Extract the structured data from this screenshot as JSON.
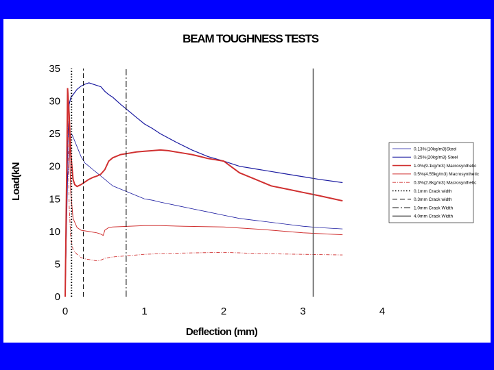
{
  "colors": {
    "background": "#0000ff",
    "panel": "#ffffff",
    "steel": "#1a1aa0",
    "synthetic": "#d03030",
    "crack": "#000000"
  },
  "chart_data": {
    "type": "line",
    "title": "BEAM TOUGHNESS TESTS",
    "xlabel": "Deflection (mm)",
    "ylabel": "Load(kN",
    "xlim": [
      0,
      4
    ],
    "ylim": [
      0,
      35
    ],
    "xticks": [
      "0",
      "1",
      "2",
      "3",
      "4"
    ],
    "yticks": [
      "0",
      "5",
      "10",
      "15",
      "20",
      "25",
      "30",
      "35"
    ],
    "grid": false,
    "legend_position": "right",
    "series": [
      {
        "name": "0.13%(10kg/m3)Steel",
        "color": "#1a1aa0",
        "width": 0.8,
        "dash": "",
        "x": [
          0,
          0.03,
          0.06,
          0.08,
          0.1,
          0.15,
          0.2,
          0.25,
          0.3,
          0.35,
          0.4,
          0.45,
          0.5,
          0.55,
          0.6,
          0.7,
          0.8,
          0.9,
          1.0,
          1.1,
          1.2,
          1.4,
          1.6,
          1.8,
          2.0,
          2.2,
          2.4,
          2.6,
          2.8,
          3.0,
          3.2,
          3.5
        ],
        "y": [
          0,
          18,
          24.5,
          25,
          24.5,
          23,
          21.5,
          20.5,
          20,
          19.5,
          19,
          18.5,
          18,
          17.5,
          17,
          16.5,
          16,
          15.5,
          15,
          14.8,
          14.5,
          14,
          13.5,
          13,
          12.5,
          12,
          11.7,
          11.4,
          11.1,
          10.8,
          10.6,
          10.4
        ]
      },
      {
        "name": "0.25%(20kg/m3) Steel",
        "color": "#1a1aa0",
        "width": 1.2,
        "dash": "",
        "x": [
          0,
          0.03,
          0.05,
          0.07,
          0.1,
          0.15,
          0.2,
          0.25,
          0.3,
          0.35,
          0.4,
          0.45,
          0.5,
          0.55,
          0.6,
          0.7,
          0.8,
          0.9,
          1.0,
          1.1,
          1.2,
          1.4,
          1.6,
          1.8,
          2.0,
          2.2,
          2.4,
          2.6,
          2.8,
          3.0,
          3.2,
          3.5
        ],
        "y": [
          0,
          22,
          29.5,
          30.5,
          31,
          31.8,
          32.3,
          32.6,
          32.8,
          32.6,
          32.4,
          32.2,
          31.5,
          31,
          30.6,
          29.5,
          28.5,
          27.5,
          26.5,
          25.8,
          25,
          23.7,
          22.5,
          21.5,
          20.8,
          20,
          19.6,
          19.2,
          18.8,
          18.4,
          18,
          17.5
        ]
      },
      {
        "name": "1.0%(9.1kg/m3) Macrosynthetic",
        "color": "#d03030",
        "width": 2.0,
        "dash": "",
        "x": [
          0,
          0.02,
          0.03,
          0.05,
          0.07,
          0.1,
          0.12,
          0.15,
          0.2,
          0.25,
          0.3,
          0.35,
          0.4,
          0.45,
          0.5,
          0.55,
          0.6,
          0.7,
          0.8,
          0.9,
          1.0,
          1.1,
          1.2,
          1.3,
          1.4,
          1.5,
          1.6,
          1.7,
          1.8,
          1.9,
          2.0,
          2.2,
          2.4,
          2.6,
          2.8,
          3.0,
          3.2,
          3.5
        ],
        "y": [
          0,
          20,
          32,
          28,
          22,
          18,
          17.2,
          16.9,
          17.2,
          17.6,
          18.0,
          18.3,
          18.5,
          18.8,
          19.5,
          20.8,
          21.3,
          21.8,
          22.0,
          22.2,
          22.3,
          22.4,
          22.5,
          22.4,
          22.2,
          22.0,
          21.8,
          21.5,
          21.2,
          21.0,
          20.8,
          19.0,
          18.0,
          17.0,
          16.5,
          16.0,
          15.5,
          14.7
        ]
      },
      {
        "name": "0.5%(4.55kg/m3) Macrosynthetic",
        "color": "#d03030",
        "width": 1.0,
        "dash": "",
        "x": [
          0,
          0.02,
          0.03,
          0.05,
          0.07,
          0.1,
          0.15,
          0.2,
          0.3,
          0.4,
          0.45,
          0.48,
          0.5,
          0.55,
          0.6,
          0.8,
          1.0,
          1.2,
          1.5,
          2.0,
          2.5,
          3.0,
          3.5
        ],
        "y": [
          0,
          20,
          31,
          25,
          16,
          12,
          10.6,
          10.2,
          10.0,
          9.8,
          9.6,
          9.4,
          10.2,
          10.6,
          10.7,
          10.8,
          10.9,
          10.9,
          10.8,
          10.7,
          10.3,
          9.8,
          9.5
        ]
      },
      {
        "name": "0.3%(2.8kg/m3) Macrosynthetic",
        "color": "#d03030",
        "width": 0.9,
        "dash": "5,2,1,2",
        "x": [
          0,
          0.02,
          0.03,
          0.05,
          0.07,
          0.1,
          0.15,
          0.2,
          0.25,
          0.3,
          0.35,
          0.4,
          0.45,
          0.5,
          0.6,
          0.8,
          1.0,
          1.2,
          1.5,
          2.0,
          2.5,
          3.0,
          3.5
        ],
        "y": [
          0,
          15,
          28,
          14,
          9,
          7.2,
          6.5,
          6.0,
          5.8,
          5.7,
          5.6,
          5.5,
          5.6,
          5.9,
          6.1,
          6.3,
          6.5,
          6.6,
          6.7,
          6.8,
          6.6,
          6.5,
          6.4
        ]
      },
      {
        "name": "0.1mm Crack width",
        "color": "#000000",
        "width": 2.0,
        "dash": "1.5,2.5",
        "x": [
          0.08,
          0.08
        ],
        "y": [
          0,
          35
        ]
      },
      {
        "name": "0.3mm Crack width",
        "color": "#000000",
        "width": 1.0,
        "dash": "7,4",
        "x": [
          0.23,
          0.23
        ],
        "y": [
          0,
          35
        ]
      },
      {
        "name": "1.0mm Crack Width",
        "color": "#000000",
        "width": 1.0,
        "dash": "9,3,2,3",
        "x": [
          0.77,
          0.77
        ],
        "y": [
          0,
          35
        ]
      },
      {
        "name": "4.0mm Crack Width",
        "color": "#555555",
        "width": 1.5,
        "dash": "",
        "x": [
          3.13,
          3.13
        ],
        "y": [
          0,
          35
        ]
      }
    ]
  }
}
